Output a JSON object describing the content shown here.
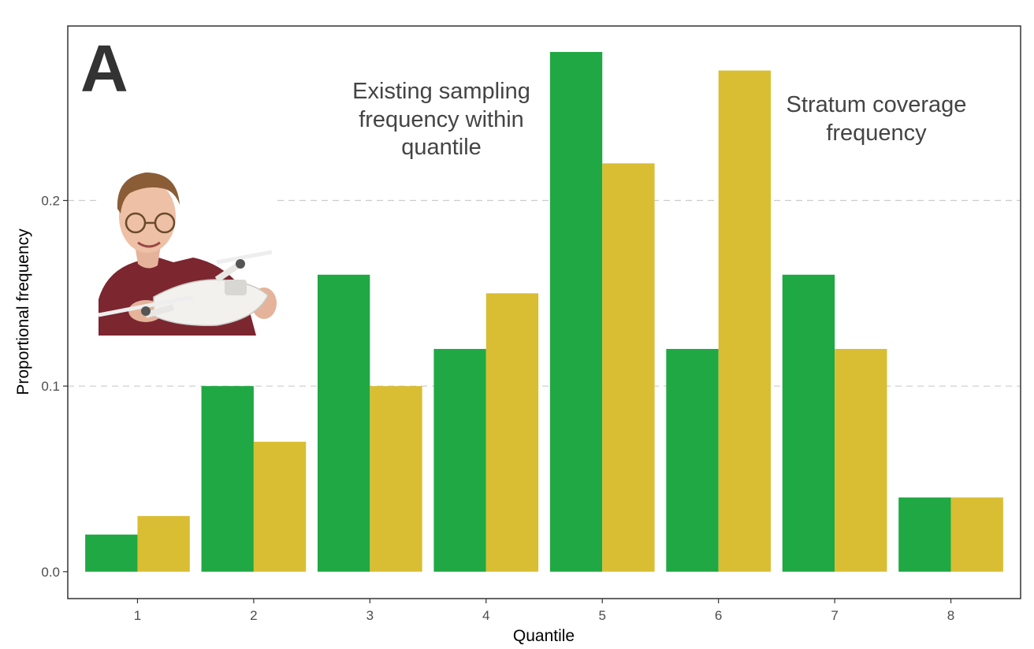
{
  "chart_data": {
    "type": "bar",
    "panel_label": "A",
    "xlabel": "Quantile",
    "ylabel": "Proportional frequency",
    "categories": [
      "1",
      "2",
      "3",
      "4",
      "5",
      "6",
      "7",
      "8"
    ],
    "ylim": [
      -0.0145,
      0.294
    ],
    "yticks": [
      0.0,
      0.1,
      0.2
    ],
    "ytick_labels": [
      "0.0",
      "0.1",
      "0.2"
    ],
    "grid": "horizontal dashed at major y ticks",
    "series": [
      {
        "name": "Existing sampling frequency within quantile",
        "color": "#1fa843",
        "values": [
          0.02,
          0.1,
          0.16,
          0.12,
          0.28,
          0.12,
          0.16,
          0.04
        ]
      },
      {
        "name": "Stratum coverage frequency",
        "color": "#d9be33",
        "values": [
          0.03,
          0.07,
          0.1,
          0.15,
          0.22,
          0.27,
          0.12,
          0.04
        ]
      }
    ],
    "annotations": [
      {
        "lines": [
          "Existing sampling",
          "frequency within",
          "quantile"
        ]
      },
      {
        "lines": [
          "Stratum coverage",
          "frequency"
        ]
      }
    ]
  },
  "inset_photo": {
    "icon": "person-holding-drone-photo",
    "shirt_color": "#7c2630",
    "background_color": "#ffffff"
  }
}
